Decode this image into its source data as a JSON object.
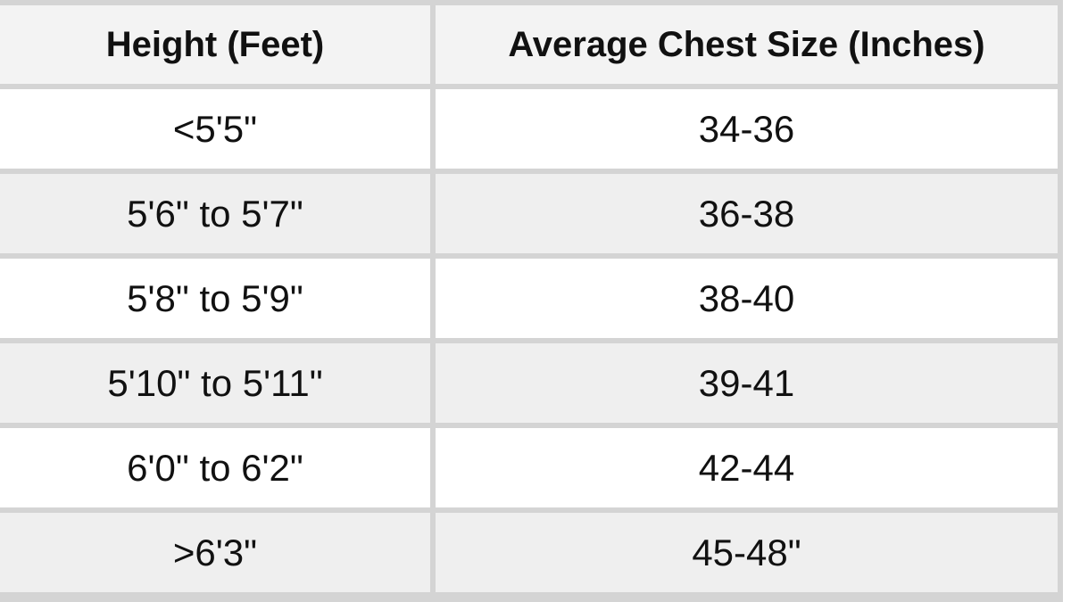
{
  "table": {
    "header": [
      "Height (Feet)",
      "Average Chest Size (Inches)"
    ],
    "rows": [
      [
        "<5'5\"",
        "34-36"
      ],
      [
        "5'6\" to 5'7\"",
        "36-38"
      ],
      [
        "5'8\" to 5'9\"",
        "38-40"
      ],
      [
        "5'10\" to 5'11\"",
        "39-41"
      ],
      [
        "6'0\" to 6'2\"",
        "42-44"
      ],
      [
        ">6'3\"",
        "45-48\""
      ]
    ]
  }
}
